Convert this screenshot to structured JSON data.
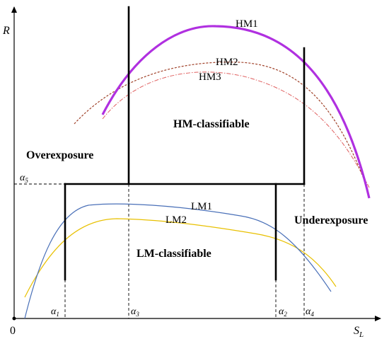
{
  "axes": {
    "y_label": "R",
    "x_label_main": "S",
    "x_label_sub": "L",
    "origin": "0"
  },
  "thresholds": {
    "a1": {
      "main": "α",
      "sub": "1"
    },
    "a2": {
      "main": "α",
      "sub": "2"
    },
    "a3": {
      "main": "α",
      "sub": "3"
    },
    "a4": {
      "main": "α",
      "sub": "4"
    },
    "a5": {
      "main": "α",
      "sub": "5"
    }
  },
  "regions": {
    "hm": "HM-classifiable",
    "lm": "LM-classifiable",
    "over": "Overexposure",
    "under": "Underexposure"
  },
  "curves": {
    "hm1": {
      "label": "HM1",
      "color": "#b030e0"
    },
    "hm2": {
      "label": "HM2",
      "color": "#a0422a"
    },
    "hm3": {
      "label": "HM3",
      "color": "#e06060"
    },
    "lm1": {
      "label": "LM1",
      "color": "#4a70b8"
    },
    "lm2": {
      "label": "LM2",
      "color": "#e8c000"
    }
  }
}
